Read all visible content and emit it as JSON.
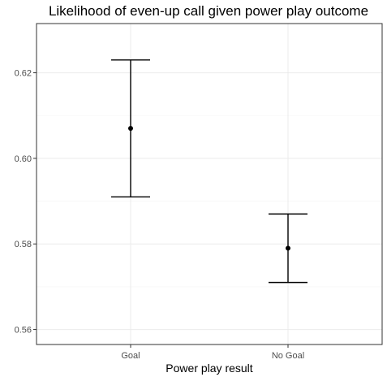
{
  "chart_data": {
    "type": "errorbar",
    "title": "Likelihood of even-up call given power play outcome",
    "xlabel": "Power play result",
    "ylabel": "",
    "categories": [
      "Goal",
      "No Goal"
    ],
    "points": [
      {
        "category": "Goal",
        "value": 0.607,
        "lower": 0.591,
        "upper": 0.623
      },
      {
        "category": "No Goal",
        "value": 0.579,
        "lower": 0.571,
        "upper": 0.587
      }
    ],
    "y_ticks": [
      0.56,
      0.58,
      0.6,
      0.62
    ],
    "y_tick_labels": [
      "0.56",
      "0.58",
      "0.60",
      "0.62"
    ],
    "ylim": [
      0.5565,
      0.6315
    ],
    "grid": true,
    "legend": "none",
    "colors": {
      "panel_border": "#333333",
      "grid_major": "#ebebeb",
      "grid_minor": "#f5f5f5",
      "marks": "#000000",
      "tick_text": "#4d4d4d"
    }
  }
}
